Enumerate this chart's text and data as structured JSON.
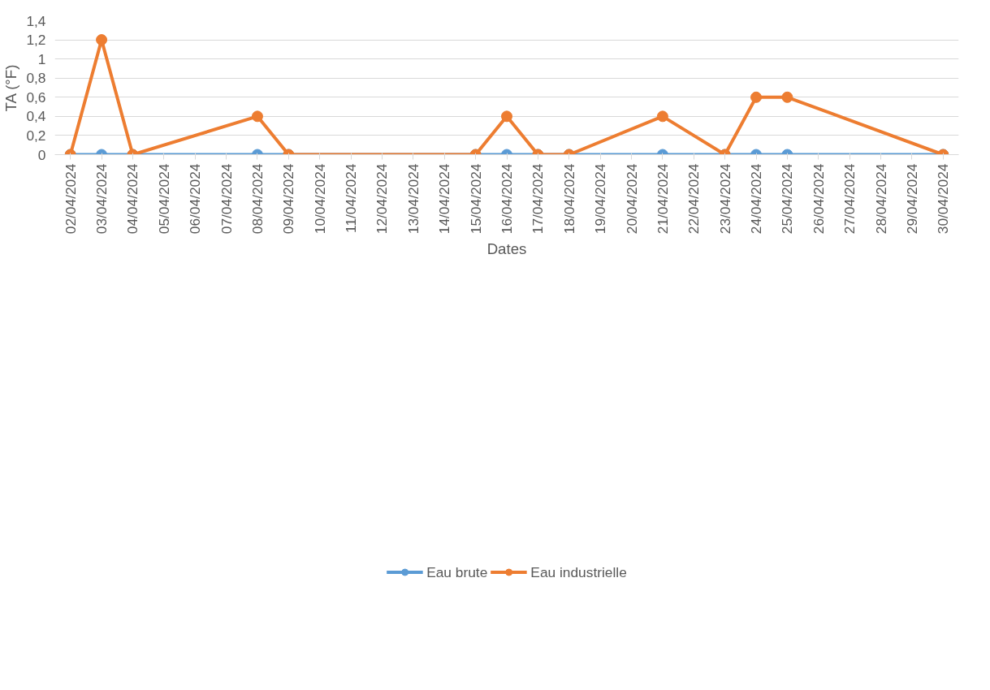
{
  "chart_data": {
    "type": "line",
    "xlabel": "Dates",
    "ylabel": "TA (°F)",
    "x": [
      "2024-04-02",
      "2024-04-03",
      "2024-04-04",
      "2024-04-08",
      "2024-04-09",
      "2024-04-15",
      "2024-04-16",
      "2024-04-17",
      "2024-04-18",
      "2024-04-21",
      "2024-04-23",
      "2024-04-24",
      "2024-04-25",
      "2024-04-30"
    ],
    "series": [
      {
        "name": "Eau brute",
        "color": "#5b9bd5",
        "values": [
          0,
          0,
          0,
          0,
          0,
          0,
          0,
          0,
          0,
          0,
          0,
          0,
          0,
          0
        ]
      },
      {
        "name": "Eau industrielle",
        "color": "#ed7d31",
        "values": [
          0,
          1.2,
          0,
          0.4,
          0,
          0,
          0.4,
          0,
          0,
          0.4,
          0,
          0.6,
          0.6,
          0
        ]
      }
    ],
    "xlim": [
      "2024-04-01T12:00",
      "2024-04-30T12:00"
    ],
    "xticks": [
      {
        "value": "2024-04-02",
        "label": "02/04/2024"
      },
      {
        "value": "2024-04-03",
        "label": "03/04/2024"
      },
      {
        "value": "2024-04-04",
        "label": "04/04/2024"
      },
      {
        "value": "2024-04-05",
        "label": "05/04/2024"
      },
      {
        "value": "2024-04-06",
        "label": "06/04/2024"
      },
      {
        "value": "2024-04-07",
        "label": "07/04/2024"
      },
      {
        "value": "2024-04-08",
        "label": "08/04/2024"
      },
      {
        "value": "2024-04-09",
        "label": "09/04/2024"
      },
      {
        "value": "2024-04-10",
        "label": "10/04/2024"
      },
      {
        "value": "2024-04-11",
        "label": "11/04/2024"
      },
      {
        "value": "2024-04-12",
        "label": "12/04/2024"
      },
      {
        "value": "2024-04-13",
        "label": "13/04/2024"
      },
      {
        "value": "2024-04-14",
        "label": "14/04/2024"
      },
      {
        "value": "2024-04-15",
        "label": "15/04/2024"
      },
      {
        "value": "2024-04-16",
        "label": "16/04/2024"
      },
      {
        "value": "2024-04-17",
        "label": "17/04/2024"
      },
      {
        "value": "2024-04-18",
        "label": "18/04/2024"
      },
      {
        "value": "2024-04-19",
        "label": "19/04/2024"
      },
      {
        "value": "2024-04-20",
        "label": "20/04/2024"
      },
      {
        "value": "2024-04-21",
        "label": "21/04/2024"
      },
      {
        "value": "2024-04-22",
        "label": "22/04/2024"
      },
      {
        "value": "2024-04-23",
        "label": "23/04/2024"
      },
      {
        "value": "2024-04-24",
        "label": "24/04/2024"
      },
      {
        "value": "2024-04-25",
        "label": "25/04/2024"
      },
      {
        "value": "2024-04-26",
        "label": "26/04/2024"
      },
      {
        "value": "2024-04-27",
        "label": "27/04/2024"
      },
      {
        "value": "2024-04-28",
        "label": "28/04/2024"
      },
      {
        "value": "2024-04-29",
        "label": "29/04/2024"
      },
      {
        "value": "2024-04-30",
        "label": "30/04/2024"
      }
    ],
    "ylim": [
      0,
      1.4
    ],
    "yticks": [
      0,
      {
        "value": 0.2,
        "label": "0,2"
      },
      {
        "value": 0.4,
        "label": "0,4"
      },
      {
        "value": 0.6,
        "label": "0,6"
      },
      {
        "value": 0.8,
        "label": "0,8"
      },
      1,
      {
        "value": 1.2,
        "label": "1,2"
      },
      {
        "value": 1.4,
        "label": "1,4"
      }
    ],
    "grid": "y",
    "legend": "bottom",
    "marker": "circle",
    "line_style": "solid"
  }
}
